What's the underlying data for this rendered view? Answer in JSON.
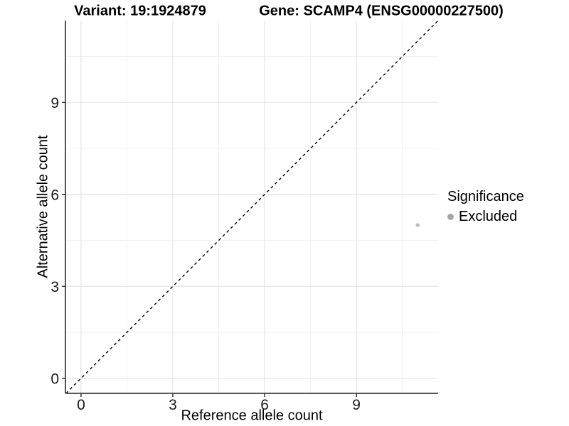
{
  "header": {
    "variant_title": "Variant: 19:1924879",
    "gene_title": "Gene: SCAMP4 (ENSG00000227500)"
  },
  "legend": {
    "title": "Significance",
    "position": "right",
    "items": [
      {
        "label": "Excluded",
        "color": "#a6a6a6"
      }
    ]
  },
  "chart_data": {
    "type": "scatter",
    "xlabel": "Reference allele count",
    "ylabel": "Alternative allele count",
    "xlim": [
      -0.51,
      11.67
    ],
    "ylim": [
      -0.49,
      11.67
    ],
    "x_major_ticks": [
      0,
      3,
      6,
      9
    ],
    "y_major_ticks": [
      0,
      3,
      6,
      9
    ],
    "x_minor_ticks": [
      1.5,
      4.5,
      7.5,
      10.5
    ],
    "y_minor_ticks": [
      1.5,
      4.5,
      7.5,
      10.5
    ],
    "grid": "major+minor",
    "identity_line": {
      "slope": 1,
      "intercept": 0,
      "style": "dashed",
      "color": "#000000"
    },
    "series": [
      {
        "name": "Excluded",
        "color": "#bdbdbd",
        "points": [
          {
            "x": 11,
            "y": 5
          }
        ]
      }
    ],
    "colors": {
      "background": "#ffffff",
      "grid_major": "#e6e6e6",
      "grid_minor": "#f0f0f0",
      "axis_line": "#404040",
      "tick_text": "#1a1a1a"
    }
  }
}
